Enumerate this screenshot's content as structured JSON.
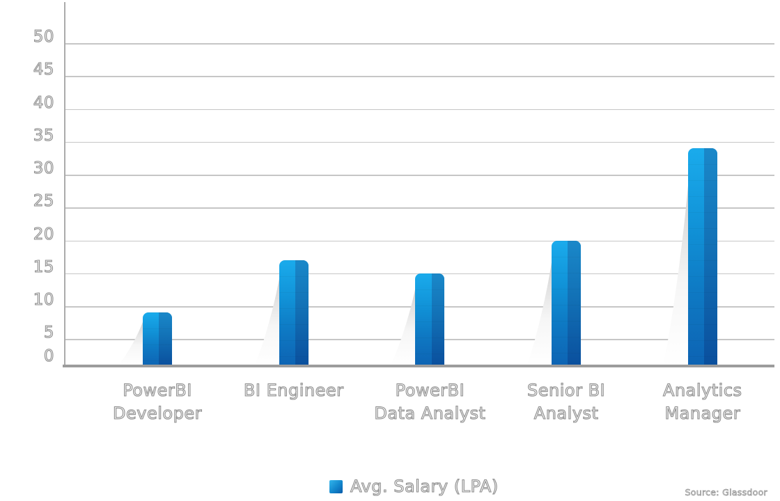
{
  "chart_data": {
    "type": "bar",
    "title": "",
    "xlabel": "",
    "ylabel": "",
    "categories": [
      "PowerBI Developer",
      "BI Engineer",
      "PowerBI Data Analyst",
      "Senior BI Analyst",
      "Analytics Manager"
    ],
    "category_lines": [
      [
        "PowerBI",
        "Developer"
      ],
      [
        "BI Engineer"
      ],
      [
        "PowerBI",
        "Data Analyst"
      ],
      [
        "Senior BI",
        "Analyst"
      ],
      [
        "Analytics",
        "Manager"
      ]
    ],
    "series": [
      {
        "name": "Avg. Salary (LPA)",
        "values": [
          9,
          17,
          15,
          20,
          34
        ]
      }
    ],
    "ylim": [
      0,
      50
    ],
    "yticks": [
      0,
      5,
      10,
      15,
      20,
      25,
      30,
      35,
      40,
      45,
      50
    ],
    "grid": true,
    "legend_position": "bottom"
  },
  "legend": {
    "label": "Avg. Salary (LPA)"
  },
  "source_note": "Source: Glassdoor",
  "colors": {
    "bar_face_top": "#1aabec",
    "bar_face_bottom": "#0d63b3",
    "bar_side_top": "#1a88c9",
    "bar_side_bottom": "#0a4f9d",
    "swoosh_top": "#bdbdbd",
    "swoosh_bottom": "#ffffff",
    "gridline": "#c6c6c6",
    "axis": "#9c9c9c",
    "label_fill": "#f4f4f4",
    "label_stroke": "#8e8e8e"
  }
}
